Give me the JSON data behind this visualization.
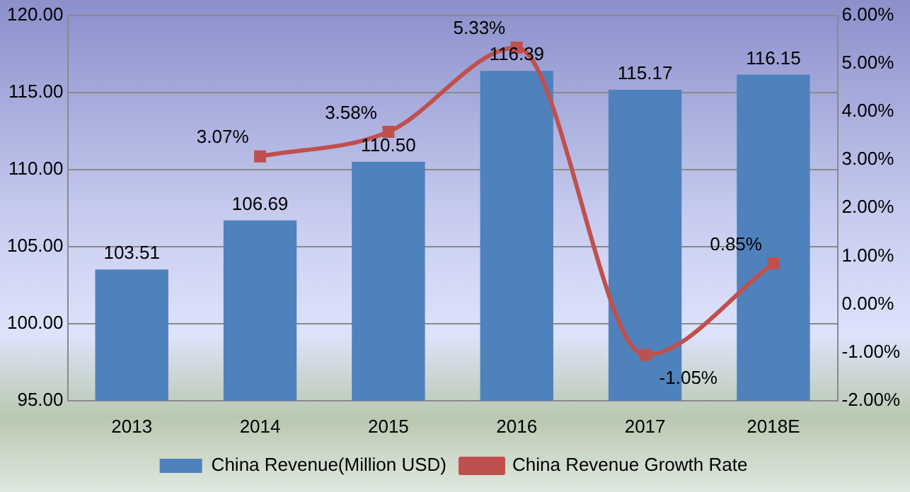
{
  "chart_data": {
    "type": "bar",
    "categories": [
      "2013",
      "2014",
      "2015",
      "2016",
      "2017",
      "2018E"
    ],
    "series": [
      {
        "name": "China Revenue(Million USD)",
        "color": "#4f81bd",
        "values": [
          103.51,
          106.69,
          110.5,
          116.39,
          115.17,
          116.15
        ],
        "value_labels": [
          "103.51",
          "106.69",
          "110.50",
          "116.39",
          "115.17",
          "116.15"
        ]
      },
      {
        "name": "China Revenue Growth Rate",
        "type": "line",
        "axis": "y2",
        "color": "#c0504d",
        "values": [
          null,
          3.07,
          3.58,
          5.33,
          -1.05,
          0.85
        ],
        "value_labels": [
          null,
          "3.07%",
          "3.58%",
          "5.33%",
          "-1.05%",
          "0.85%"
        ]
      }
    ],
    "ylim": [
      95,
      120
    ],
    "yticks": [
      {
        "value": 95,
        "label": "95.00"
      },
      {
        "value": 100,
        "label": "100.00"
      },
      {
        "value": 105,
        "label": "105.00"
      },
      {
        "value": 110,
        "label": "110.00"
      },
      {
        "value": 115,
        "label": "115.00"
      },
      {
        "value": 120,
        "label": "120.00"
      }
    ],
    "y2lim": [
      -2,
      6
    ],
    "y2ticks": [
      {
        "value": -2,
        "label": "-2.00%"
      },
      {
        "value": -1,
        "label": "-1.00%"
      },
      {
        "value": 0,
        "label": "0.00%"
      },
      {
        "value": 1,
        "label": "1.00%"
      },
      {
        "value": 2,
        "label": "2.00%"
      },
      {
        "value": 3,
        "label": "3.00%"
      },
      {
        "value": 4,
        "label": "4.00%"
      },
      {
        "value": 5,
        "label": "5.00%"
      },
      {
        "value": 6,
        "label": "6.00%"
      }
    ],
    "grid": "y",
    "legend": "bottom",
    "marker": "square"
  }
}
